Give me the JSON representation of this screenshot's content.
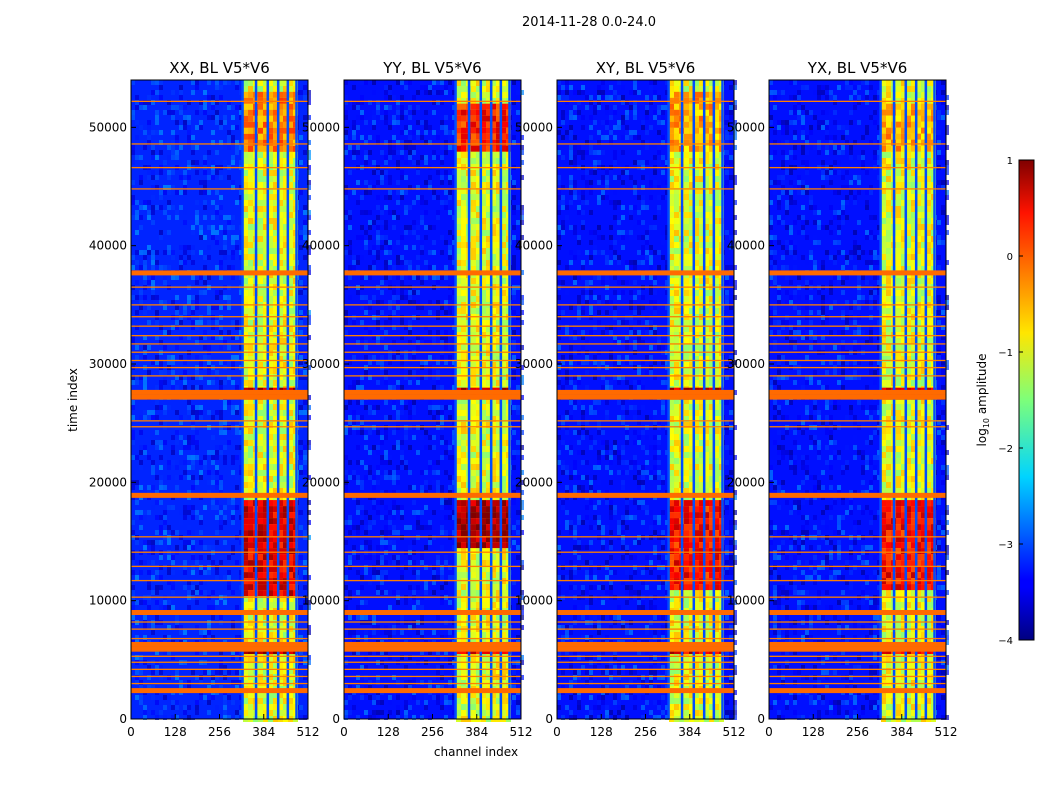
{
  "figure": {
    "suptitle": "2014-11-28 0.0-24.0",
    "xlabel": "channel index",
    "ylabel": "time index"
  },
  "colorbar": {
    "label_prefix": "log",
    "label_sub": "10",
    "label_suffix": " amplitude",
    "ticks": [
      1,
      0,
      -1,
      -2,
      -3,
      -4
    ],
    "tick_labels": [
      "1",
      "0",
      "−1",
      "−2",
      "−3",
      "−4"
    ],
    "range": [
      -4,
      1
    ],
    "colormap": "jet"
  },
  "chart_data": [
    {
      "type": "heatmap",
      "title": "XX, BL V5*V6",
      "xlabel": "channel index",
      "ylabel": "time index",
      "xlim": [
        0,
        512
      ],
      "ylim": [
        0,
        54000
      ],
      "xticks": [
        0,
        128,
        256,
        384,
        512
      ],
      "yticks": [
        0,
        10000,
        20000,
        30000,
        40000,
        50000
      ],
      "ytick_labels": [
        "0",
        "10000",
        "20000",
        "30000",
        "40000",
        "50000"
      ],
      "background_level": -3.2,
      "bright_channel_range": [
        324,
        512
      ],
      "bright_level": -1.0,
      "bright_column_channels": [
        322,
        361,
        395,
        425,
        453,
        478
      ],
      "flag_rows_major": [
        2400,
        5900,
        6300,
        9000,
        18900,
        27200,
        27600,
        37700
      ],
      "flag_rows_minor": [
        3000,
        3600,
        4200,
        4800,
        5300,
        6800,
        7600,
        8200,
        10300,
        11700,
        12900,
        14100,
        15400,
        24700,
        25200,
        29000,
        29700,
        30300,
        31000,
        31700,
        32400,
        33200,
        34000,
        35000,
        36500,
        44800,
        46600,
        48600,
        52200
      ],
      "hot_regions": [
        {
          "time": [
            10500,
            18500
          ],
          "level": 0.6
        },
        {
          "time": [
            27300,
            28000
          ],
          "level": 0.8
        },
        {
          "time": [
            5700,
            6500
          ],
          "level": 0.8
        },
        {
          "time": [
            48000,
            53000
          ],
          "level": -0.2
        }
      ]
    },
    {
      "type": "heatmap",
      "title": "YY, BL V5*V6",
      "xlabel": "channel index",
      "ylabel": "time index",
      "xlim": [
        0,
        512
      ],
      "ylim": [
        0,
        54000
      ],
      "xticks": [
        0,
        128,
        256,
        384,
        512
      ],
      "yticks": [
        0,
        10000,
        20000,
        30000,
        40000,
        50000
      ],
      "ytick_labels": [
        "0",
        "10000",
        "20000",
        "30000",
        "40000",
        "50000"
      ],
      "background_level": -3.3,
      "bright_channel_range": [
        324,
        512
      ],
      "bright_level": -1.0,
      "bright_column_channels": [
        322,
        361,
        395,
        425,
        453,
        478
      ],
      "flag_rows_major": [
        2400,
        5900,
        6300,
        9000,
        18900,
        27200,
        27600,
        37700
      ],
      "flag_rows_minor": [
        3000,
        3600,
        4200,
        4800,
        5300,
        6800,
        7600,
        8200,
        10300,
        11700,
        12900,
        14100,
        15400,
        24700,
        25200,
        29000,
        29700,
        30300,
        31000,
        31700,
        32400,
        33200,
        34000,
        35000,
        36500,
        44800,
        46600,
        48600,
        52200
      ],
      "hot_regions": [
        {
          "time": [
            14500,
            18500
          ],
          "level": 0.9
        },
        {
          "time": [
            27300,
            28000
          ],
          "level": 0.8
        },
        {
          "time": [
            5700,
            6500
          ],
          "level": 0.5
        },
        {
          "time": [
            48000,
            52000
          ],
          "level": 0.3
        }
      ]
    },
    {
      "type": "heatmap",
      "title": "XY, BL V5*V6",
      "xlabel": "channel index",
      "ylabel": "time index",
      "xlim": [
        0,
        512
      ],
      "ylim": [
        0,
        54000
      ],
      "xticks": [
        0,
        128,
        256,
        384,
        512
      ],
      "yticks": [
        0,
        10000,
        20000,
        30000,
        40000,
        50000
      ],
      "ytick_labels": [
        "0",
        "10000",
        "20000",
        "30000",
        "40000",
        "50000"
      ],
      "background_level": -3.3,
      "bright_channel_range": [
        324,
        512
      ],
      "bright_level": -1.0,
      "bright_column_channels": [
        322,
        361,
        395,
        425,
        453,
        478
      ],
      "flag_rows_major": [
        2400,
        5900,
        6300,
        9000,
        18900,
        27200,
        27600,
        37700
      ],
      "flag_rows_minor": [
        3000,
        3600,
        4200,
        4800,
        5300,
        6800,
        7600,
        8200,
        10300,
        11700,
        12900,
        14100,
        15400,
        24700,
        25200,
        29000,
        29700,
        30300,
        31000,
        31700,
        32400,
        33200,
        34000,
        35000,
        36500,
        44800,
        46600,
        48600,
        52200
      ],
      "hot_regions": [
        {
          "time": [
            11000,
            18500
          ],
          "level": 0.4
        },
        {
          "time": [
            27300,
            28000
          ],
          "level": 0.8
        },
        {
          "time": [
            5700,
            6500
          ],
          "level": 0.6
        },
        {
          "time": [
            48000,
            53000
          ],
          "level": -0.4
        }
      ]
    },
    {
      "type": "heatmap",
      "title": "YX, BL V5*V6",
      "xlabel": "channel index",
      "ylabel": "time index",
      "xlim": [
        0,
        512
      ],
      "ylim": [
        0,
        54000
      ],
      "xticks": [
        0,
        128,
        256,
        384,
        512
      ],
      "yticks": [
        0,
        10000,
        20000,
        30000,
        40000,
        50000
      ],
      "ytick_labels": [
        "0",
        "10000",
        "20000",
        "30000",
        "40000",
        "50000"
      ],
      "background_level": -3.3,
      "bright_channel_range": [
        324,
        512
      ],
      "bright_level": -1.0,
      "bright_column_channels": [
        322,
        361,
        395,
        425,
        453,
        478
      ],
      "flag_rows_major": [
        2400,
        5900,
        6300,
        9000,
        18900,
        27200,
        27600,
        37700
      ],
      "flag_rows_minor": [
        3000,
        3600,
        4200,
        4800,
        5300,
        6800,
        7600,
        8200,
        10300,
        11700,
        12900,
        14100,
        15400,
        24700,
        25200,
        29000,
        29700,
        30300,
        31000,
        31700,
        32400,
        33200,
        34000,
        35000,
        36500,
        44800,
        46600,
        48600,
        52200
      ],
      "hot_regions": [
        {
          "time": [
            11000,
            18500
          ],
          "level": 0.4
        },
        {
          "time": [
            27300,
            28000
          ],
          "level": 0.8
        },
        {
          "time": [
            5700,
            6500
          ],
          "level": 0.5
        },
        {
          "time": [
            48000,
            52000
          ],
          "level": -0.4
        }
      ]
    }
  ]
}
